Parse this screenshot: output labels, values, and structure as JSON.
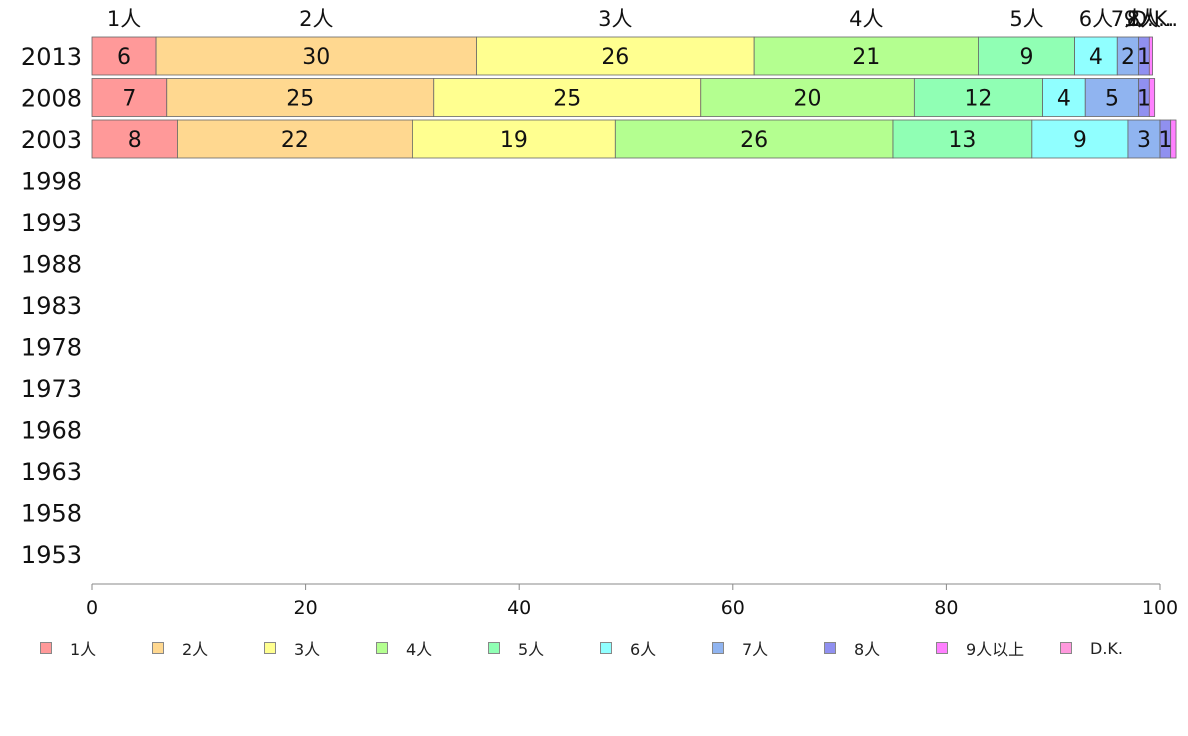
{
  "chart_data": {
    "type": "bar",
    "orientation": "horizontal",
    "stacked": true,
    "categories": [
      "2013",
      "2008",
      "2003",
      "1998",
      "1993",
      "1988",
      "1983",
      "1978",
      "1973",
      "1968",
      "1963",
      "1958",
      "1953"
    ],
    "series": [
      {
        "name": "1人",
        "color": "#ff9999",
        "values": [
          6,
          7,
          8,
          null,
          null,
          null,
          null,
          null,
          null,
          null,
          null,
          null,
          null
        ]
      },
      {
        "name": "2人",
        "color": "#ffd890",
        "values": [
          30,
          25,
          22,
          null,
          null,
          null,
          null,
          null,
          null,
          null,
          null,
          null,
          null
        ]
      },
      {
        "name": "3人",
        "color": "#ffff90",
        "values": [
          26,
          25,
          19,
          null,
          null,
          null,
          null,
          null,
          null,
          null,
          null,
          null,
          null
        ]
      },
      {
        "name": "4人",
        "color": "#b4ff90",
        "values": [
          21,
          20,
          26,
          null,
          null,
          null,
          null,
          null,
          null,
          null,
          null,
          null,
          null
        ]
      },
      {
        "name": "5人",
        "color": "#90ffb4",
        "values": [
          9,
          12,
          13,
          null,
          null,
          null,
          null,
          null,
          null,
          null,
          null,
          null,
          null
        ]
      },
      {
        "name": "6人",
        "color": "#90ffff",
        "values": [
          4,
          4,
          9,
          null,
          null,
          null,
          null,
          null,
          null,
          null,
          null,
          null,
          null
        ]
      },
      {
        "name": "7人",
        "color": "#90b4f0",
        "values": [
          2,
          5,
          3,
          null,
          null,
          null,
          null,
          null,
          null,
          null,
          null,
          null,
          null
        ]
      },
      {
        "name": "8人",
        "color": "#9090f0",
        "values": [
          1,
          1,
          1,
          null,
          null,
          null,
          null,
          null,
          null,
          null,
          null,
          null,
          null
        ]
      },
      {
        "name": "9人以上",
        "color": "#ff80ff",
        "values": [
          0.3,
          0.5,
          0.5,
          null,
          null,
          null,
          null,
          null,
          null,
          null,
          null,
          null,
          null
        ]
      },
      {
        "name": "D.K.",
        "color": "#ff99dd",
        "values": [
          0,
          0,
          0,
          null,
          null,
          null,
          null,
          null,
          null,
          null,
          null,
          null,
          null
        ]
      }
    ],
    "data_labels": [
      [
        "6",
        "30",
        "26",
        "21",
        "9",
        "4",
        "2",
        "1",
        "",
        ""
      ],
      [
        "7",
        "25",
        "25",
        "20",
        "12",
        "4",
        "5",
        "1",
        "",
        ""
      ],
      [
        "8",
        "22",
        "19",
        "26",
        "13",
        "9",
        "3",
        "1",
        "",
        ""
      ]
    ],
    "top_labels": [
      "1人",
      "2人",
      "3人",
      "4人",
      "5人",
      "6人",
      "7人",
      "8人",
      "9人...",
      "D.K."
    ],
    "xlim": [
      0,
      100
    ],
    "xticks": [
      "0",
      "20",
      "40",
      "60",
      "80",
      "100"
    ],
    "grid": false,
    "legend_position": "bottom"
  }
}
